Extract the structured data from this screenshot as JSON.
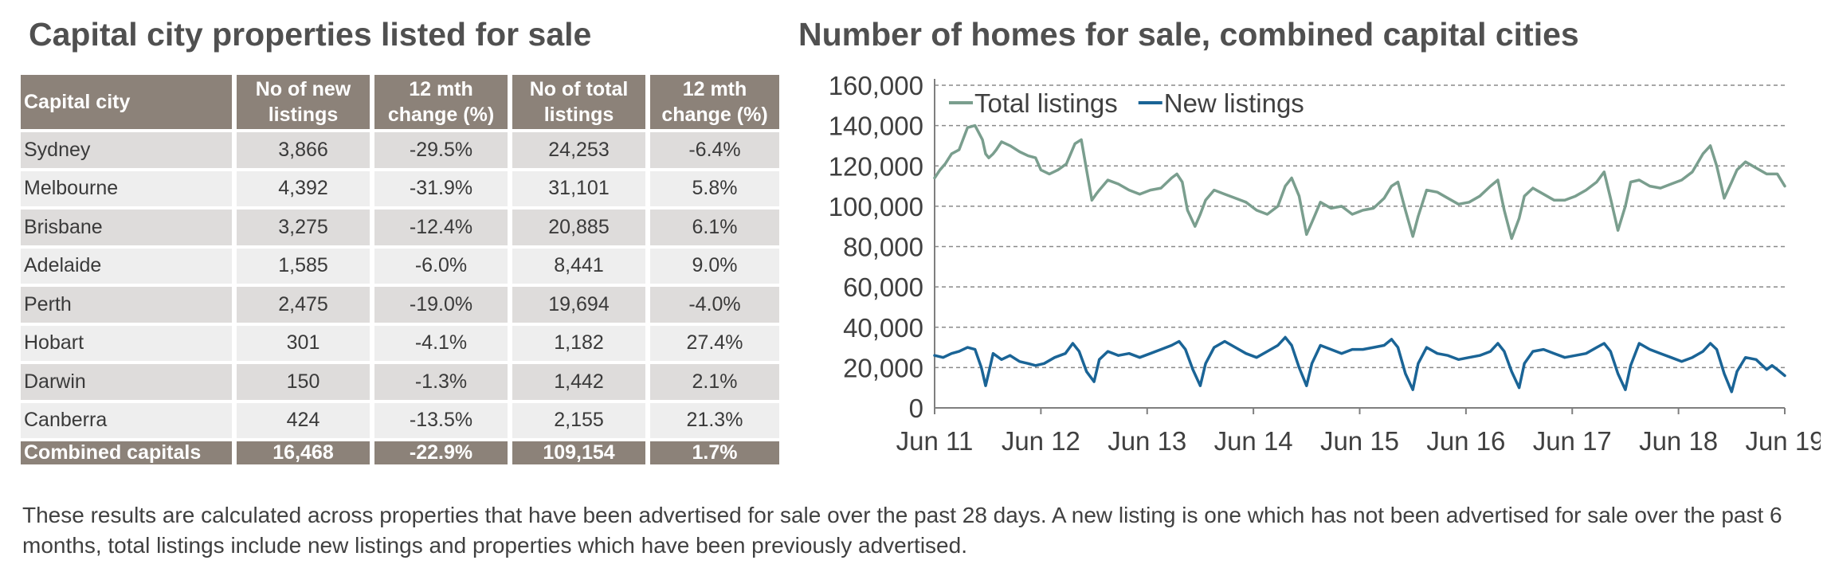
{
  "left_title": "Capital city properties listed for sale",
  "right_title": "Number of homes for sale, combined capital cities",
  "table": {
    "headers": [
      "Capital city",
      "No of new listings",
      "12 mth change (%)",
      "No of total listings",
      "12 mth change (%)"
    ],
    "rows": [
      [
        "Sydney",
        "3,866",
        "-29.5%",
        "24,253",
        "-6.4%"
      ],
      [
        "Melbourne",
        "4,392",
        "-31.9%",
        "31,101",
        "5.8%"
      ],
      [
        "Brisbane",
        "3,275",
        "-12.4%",
        "20,885",
        "6.1%"
      ],
      [
        "Adelaide",
        "1,585",
        "-6.0%",
        "8,441",
        "9.0%"
      ],
      [
        "Perth",
        "2,475",
        "-19.0%",
        "19,694",
        "-4.0%"
      ],
      [
        "Hobart",
        "301",
        "-4.1%",
        "1,182",
        "27.4%"
      ],
      [
        "Darwin",
        "150",
        "-1.3%",
        "1,442",
        "2.1%"
      ],
      [
        "Canberra",
        "424",
        "-13.5%",
        "2,155",
        "21.3%"
      ]
    ],
    "footer": [
      "Combined capitals",
      "16,468",
      "-22.9%",
      "109,154",
      "1.7%"
    ]
  },
  "chart_data": {
    "type": "line",
    "title": "Number of homes for sale, combined capital cities",
    "xlabel": "",
    "ylabel": "",
    "ylim": [
      0,
      160000
    ],
    "xlim": [
      2011.42,
      2019.42
    ],
    "yticks": [
      0,
      20000,
      40000,
      60000,
      80000,
      100000,
      120000,
      140000,
      160000
    ],
    "ytick_labels": [
      "0",
      "20,000",
      "40,000",
      "60,000",
      "80,000",
      "100,000",
      "120,000",
      "140,000",
      "160,000"
    ],
    "xticks": [
      2011.42,
      2012.42,
      2013.42,
      2014.42,
      2015.42,
      2016.42,
      2017.42,
      2018.42,
      2019.42
    ],
    "xtick_labels": [
      "Jun 11",
      "Jun 12",
      "Jun 13",
      "Jun 14",
      "Jun 15",
      "Jun 16",
      "Jun 17",
      "Jun 18",
      "Jun 19"
    ],
    "grid": "horizontal dashed",
    "legend_position": "top-left",
    "series": [
      {
        "name": "Total listings",
        "color": "#7a9e8e",
        "x": [
          2011.42,
          2011.47,
          2011.52,
          2011.58,
          2011.65,
          2011.73,
          2011.8,
          2011.87,
          2011.9,
          2011.93,
          2011.97,
          2012.0,
          2012.05,
          2012.13,
          2012.22,
          2012.3,
          2012.37,
          2012.42,
          2012.5,
          2012.58,
          2012.66,
          2012.74,
          2012.8,
          2012.85,
          2012.9,
          2012.94,
          2012.97,
          2013.05,
          2013.15,
          2013.25,
          2013.35,
          2013.45,
          2013.55,
          2013.65,
          2013.7,
          2013.75,
          2013.8,
          2013.87,
          2013.92,
          2013.97,
          2014.05,
          2014.15,
          2014.25,
          2014.35,
          2014.45,
          2014.55,
          2014.65,
          2014.72,
          2014.78,
          2014.85,
          2014.92,
          2014.97,
          2015.05,
          2015.15,
          2015.25,
          2015.35,
          2015.45,
          2015.55,
          2015.65,
          2015.72,
          2015.78,
          2015.85,
          2015.92,
          2015.97,
          2016.05,
          2016.15,
          2016.25,
          2016.35,
          2016.45,
          2016.55,
          2016.65,
          2016.72,
          2016.78,
          2016.85,
          2016.92,
          2016.97,
          2017.05,
          2017.15,
          2017.25,
          2017.35,
          2017.45,
          2017.55,
          2017.65,
          2017.72,
          2017.78,
          2017.85,
          2017.92,
          2017.97,
          2018.05,
          2018.15,
          2018.25,
          2018.35,
          2018.45,
          2018.55,
          2018.65,
          2018.72,
          2018.78,
          2018.85,
          2018.92,
          2018.97,
          2019.05,
          2019.15,
          2019.25,
          2019.35,
          2019.42
        ],
        "values": [
          114000,
          118000,
          121000,
          126000,
          128000,
          139000,
          140000,
          133000,
          126000,
          124000,
          126000,
          128000,
          132000,
          130000,
          127000,
          125000,
          124000,
          118000,
          116000,
          118000,
          121000,
          131000,
          133000,
          118000,
          103000,
          106000,
          108000,
          113000,
          111000,
          108000,
          106000,
          108000,
          109000,
          114000,
          116000,
          112000,
          98000,
          90000,
          96000,
          103000,
          108000,
          106000,
          104000,
          102000,
          98000,
          96000,
          100000,
          110000,
          114000,
          105000,
          86000,
          92000,
          102000,
          99000,
          100000,
          96000,
          98000,
          99000,
          104000,
          110000,
          112000,
          98000,
          85000,
          95000,
          108000,
          107000,
          104000,
          101000,
          102000,
          105000,
          110000,
          113000,
          98000,
          84000,
          94000,
          105000,
          109000,
          106000,
          103000,
          103000,
          105000,
          108000,
          112000,
          117000,
          104000,
          88000,
          100000,
          112000,
          113000,
          110000,
          109000,
          111000,
          113000,
          117000,
          126000,
          130000,
          120000,
          104000,
          112000,
          118000,
          122000,
          119000,
          116000,
          116000,
          110000
        ]
      },
      {
        "name": "New listings",
        "color": "#1a6496",
        "x": [
          2011.42,
          2011.5,
          2011.58,
          2011.65,
          2011.73,
          2011.8,
          2011.86,
          2011.9,
          2011.94,
          2011.97,
          2012.05,
          2012.13,
          2012.22,
          2012.3,
          2012.37,
          2012.45,
          2012.55,
          2012.65,
          2012.72,
          2012.78,
          2012.85,
          2012.92,
          2012.97,
          2013.05,
          2013.15,
          2013.25,
          2013.35,
          2013.45,
          2013.55,
          2013.65,
          2013.72,
          2013.78,
          2013.85,
          2013.92,
          2013.97,
          2014.05,
          2014.15,
          2014.25,
          2014.35,
          2014.45,
          2014.55,
          2014.65,
          2014.72,
          2014.78,
          2014.85,
          2014.92,
          2014.97,
          2015.05,
          2015.15,
          2015.25,
          2015.35,
          2015.45,
          2015.55,
          2015.65,
          2015.72,
          2015.78,
          2015.85,
          2015.92,
          2015.97,
          2016.05,
          2016.15,
          2016.25,
          2016.35,
          2016.45,
          2016.55,
          2016.65,
          2016.72,
          2016.78,
          2016.85,
          2016.92,
          2016.97,
          2017.05,
          2017.15,
          2017.25,
          2017.35,
          2017.45,
          2017.55,
          2017.65,
          2017.72,
          2017.78,
          2017.85,
          2017.92,
          2017.97,
          2018.05,
          2018.15,
          2018.25,
          2018.35,
          2018.45,
          2018.55,
          2018.65,
          2018.72,
          2018.78,
          2018.85,
          2018.92,
          2018.97,
          2019.05,
          2019.15,
          2019.25,
          2019.3,
          2019.35,
          2019.42
        ],
        "values": [
          26000,
          25000,
          27000,
          28000,
          30000,
          29000,
          20000,
          11000,
          20000,
          27000,
          24000,
          26000,
          23000,
          22000,
          21000,
          22000,
          25000,
          27000,
          32000,
          28000,
          18000,
          13000,
          24000,
          28000,
          26000,
          27000,
          25000,
          27000,
          29000,
          31000,
          33000,
          29000,
          19000,
          11000,
          22000,
          30000,
          33000,
          30000,
          27000,
          25000,
          28000,
          31000,
          35000,
          31000,
          20000,
          11000,
          22000,
          31000,
          29000,
          27000,
          29000,
          29000,
          30000,
          31000,
          34000,
          30000,
          17000,
          9000,
          22000,
          30000,
          27000,
          26000,
          24000,
          25000,
          26000,
          28000,
          32000,
          28000,
          18000,
          10000,
          22000,
          28000,
          29000,
          27000,
          25000,
          26000,
          27000,
          30000,
          32000,
          28000,
          17000,
          9000,
          21000,
          32000,
          29000,
          27000,
          25000,
          23000,
          25000,
          28000,
          32000,
          29000,
          17000,
          8000,
          18000,
          25000,
          24000,
          19000,
          21000,
          19000,
          16000
        ]
      }
    ]
  },
  "note": "These results are calculated across properties that have been advertised for sale over the past 28 days.  A new listing is one which has not been advertised for sale over the past 6 months, total listings include new listings and properties which have been previously advertised."
}
